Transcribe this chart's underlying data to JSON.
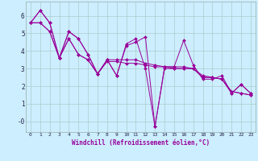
{
  "title": "",
  "xlabel": "Windchill (Refroidissement éolien,°C)",
  "bg_color": "#cceeff",
  "grid_color": "#aacccc",
  "line_color": "#990099",
  "xlim": [
    -0.5,
    23.5
  ],
  "ylim": [
    -0.6,
    6.8
  ],
  "yticks": [
    0,
    1,
    2,
    3,
    4,
    5,
    6
  ],
  "ytick_labels": [
    "-0",
    "1",
    "2",
    "3",
    "4",
    "5",
    "6"
  ],
  "xticks": [
    0,
    1,
    2,
    3,
    4,
    5,
    6,
    7,
    8,
    9,
    10,
    11,
    12,
    13,
    14,
    15,
    16,
    17,
    18,
    19,
    20,
    21,
    22,
    23
  ],
  "series": [
    [
      5.6,
      6.3,
      5.6,
      3.6,
      5.1,
      4.7,
      3.8,
      2.7,
      3.5,
      2.6,
      4.4,
      4.7,
      3.0,
      -0.3,
      3.1,
      3.1,
      4.6,
      3.2,
      2.4,
      2.4,
      2.6,
      1.6,
      2.1,
      1.6
    ],
    [
      5.6,
      6.3,
      5.6,
      3.6,
      5.1,
      4.7,
      3.8,
      2.7,
      3.5,
      2.6,
      4.3,
      4.5,
      4.8,
      -0.3,
      3.0,
      3.0,
      3.0,
      3.0,
      2.5,
      2.5,
      2.4,
      1.6,
      2.1,
      1.6
    ],
    [
      5.6,
      5.6,
      5.1,
      3.6,
      4.7,
      3.8,
      3.5,
      2.7,
      3.5,
      3.5,
      3.5,
      3.5,
      3.3,
      3.2,
      3.1,
      3.1,
      3.1,
      3.0,
      2.6,
      2.5,
      2.4,
      1.7,
      1.6,
      1.5
    ],
    [
      5.6,
      5.6,
      5.1,
      3.6,
      4.7,
      3.8,
      3.5,
      2.7,
      3.4,
      3.4,
      3.3,
      3.3,
      3.2,
      3.1,
      3.1,
      3.0,
      3.0,
      3.0,
      2.5,
      2.5,
      2.4,
      1.7,
      1.6,
      1.5
    ]
  ]
}
